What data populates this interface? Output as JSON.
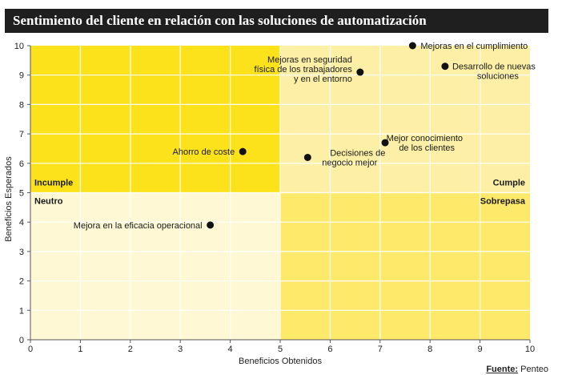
{
  "header": {
    "title": "Sentimiento del cliente en relación con las soluciones de automatización"
  },
  "footer": {
    "source_label": "Fuente:",
    "source_value": "Penteo"
  },
  "quadrants": {
    "top_left": "Incumple",
    "bottom_left": "Neutro",
    "top_right": "Cumple",
    "bottom_right": "Sobrepasa",
    "colors": {
      "top_left": "#fce21a",
      "top_right": "#fdf0a6",
      "bottom_left": "#fef8d5",
      "bottom_right": "#fee96b"
    }
  },
  "chart_data": {
    "type": "scatter",
    "xlabel": "Beneficios Obtenidos",
    "ylabel": "Beneficios Esperados",
    "xlim": [
      0,
      10
    ],
    "ylim": [
      0,
      10
    ],
    "x_ticks": [
      "0",
      "1",
      "2",
      "3",
      "4",
      "5",
      "6",
      "7",
      "8",
      "9",
      "10"
    ],
    "y_ticks": [
      "0",
      "1",
      "2",
      "3",
      "4",
      "5",
      "6",
      "7",
      "8",
      "9",
      "10"
    ],
    "grid": true,
    "point_color": "#111111",
    "points": [
      {
        "x": 7.65,
        "y": 10.0,
        "label": [
          "Mejoras en el cumplimiento"
        ],
        "align": "right"
      },
      {
        "x": 8.3,
        "y": 9.3,
        "label": [
          "Desarrollo de nuevas",
          "soluciones"
        ],
        "align": "right"
      },
      {
        "x": 6.6,
        "y": 9.1,
        "label": [
          "Mejoras en seguridad",
          "física de los trabajadores",
          "y en el entorno"
        ],
        "align": "left"
      },
      {
        "x": 7.1,
        "y": 6.7,
        "label": [
          "Mejor conocimiento",
          "de los clientes"
        ],
        "align": "right"
      },
      {
        "x": 5.55,
        "y": 6.2,
        "label": [
          "Decisiones de",
          "negocio mejor"
        ],
        "align": "right"
      },
      {
        "x": 4.25,
        "y": 6.4,
        "label": [
          "Ahorro de coste"
        ],
        "align": "left"
      },
      {
        "x": 3.6,
        "y": 3.9,
        "label": [
          "Mejora en la eficacia operacional"
        ],
        "align": "left"
      }
    ]
  }
}
